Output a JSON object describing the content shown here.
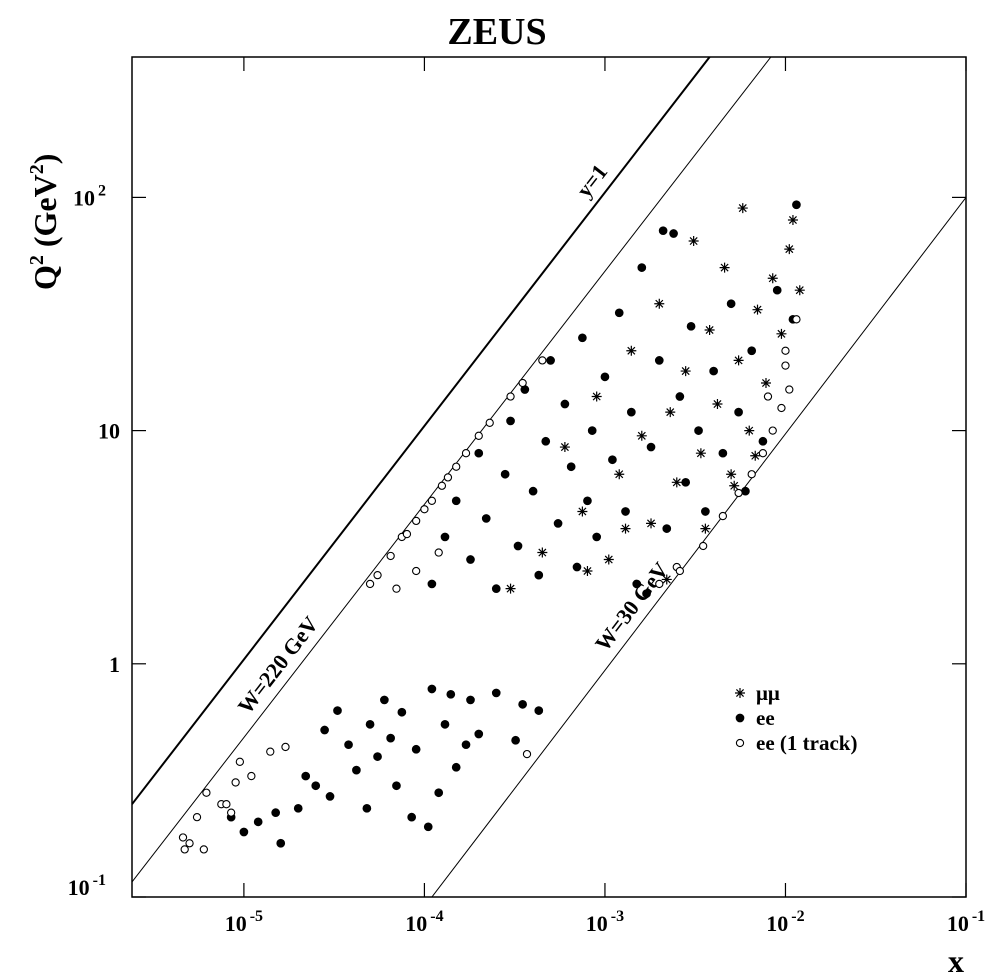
{
  "chart_data": {
    "type": "scatter",
    "title": "ZEUS",
    "xlabel": "x",
    "ylabel": [
      "Q",
      "2",
      " (GeV",
      "2",
      ")"
    ],
    "log_x": true,
    "log_y": true,
    "xlim": [
      2.4e-06,
      0.1
    ],
    "ylim": [
      0.1,
      400
    ],
    "xticks": [
      {
        "value": 1e-05,
        "label": "10",
        "sup": "-5"
      },
      {
        "value": 0.0001,
        "label": "10",
        "sup": "-4"
      },
      {
        "value": 0.001,
        "label": "10",
        "sup": "-3"
      },
      {
        "value": 0.01,
        "label": "10",
        "sup": "-2"
      },
      {
        "value": 0.1,
        "label": "10",
        "sup": "-1"
      }
    ],
    "yticks": [
      {
        "value": 0.1,
        "label": "10",
        "sup": "-1"
      },
      1,
      10,
      {
        "value": 100,
        "label": "10",
        "sup": "2"
      }
    ],
    "legend": "lower right",
    "lines": [
      {
        "label": "y=1",
        "width": 2,
        "x": [
          2.4e-06,
          0.0038
        ],
        "y": [
          0.25,
          400
        ]
      },
      {
        "label": "W=220 GeV",
        "width": 1,
        "x": [
          2.4e-06,
          0.0083
        ],
        "y": [
          0.116,
          400
        ]
      },
      {
        "label": "W=30 GeV",
        "width": 1,
        "x": [
          0.00011,
          0.1
        ],
        "y": [
          0.1,
          100
        ]
      }
    ],
    "series": [
      {
        "name": "μμ",
        "marker": "asterisk",
        "color": "#000000",
        "x": [
          0.0003,
          0.00045,
          0.0006,
          0.00075,
          0.0009,
          0.00105,
          0.0012,
          0.0014,
          0.0016,
          0.0018,
          0.002,
          0.0023,
          0.0025,
          0.0028,
          0.0031,
          0.0034,
          0.0038,
          0.0042,
          0.0046,
          0.005,
          0.0055,
          0.0058,
          0.0063,
          0.007,
          0.0078,
          0.0085,
          0.0095,
          0.0105,
          0.011,
          0.012,
          0.0008,
          0.0013,
          0.0022,
          0.0036,
          0.0052,
          0.0068
        ],
        "y": [
          2.1,
          3.0,
          8.5,
          4.5,
          14,
          2.8,
          6.5,
          22,
          9.5,
          4.0,
          35,
          12,
          6.0,
          18,
          65,
          8.0,
          27,
          13,
          50,
          6.5,
          20,
          90,
          10,
          33,
          16,
          45,
          26,
          60,
          80,
          40,
          2.5,
          3.8,
          2.3,
          3.8,
          5.8,
          7.8
        ]
      },
      {
        "name": "ee",
        "marker": "filled",
        "color": "#000000",
        "x": [
          1e-05,
          1.2e-05,
          1.5e-05,
          1.6e-05,
          2e-05,
          2.5e-05,
          2.8e-05,
          3e-05,
          3.3e-05,
          3.8e-05,
          4.2e-05,
          4.8e-05,
          5.5e-05,
          6e-05,
          6.5e-05,
          7e-05,
          7.5e-05,
          8.5e-05,
          9e-05,
          0.000105,
          0.00011,
          0.00013,
          0.00015,
          0.00018,
          0.0002,
          0.00025,
          0.00032,
          0.00035,
          0.00043,
          8.5e-06,
          2.2e-05,
          5e-05,
          0.00012,
          0.00014,
          0.00017,
          0.00011,
          0.00013,
          0.00015,
          0.00018,
          0.0002,
          0.00022,
          0.00025,
          0.00028,
          0.0003,
          0.00033,
          0.00036,
          0.0004,
          0.00043,
          0.00047,
          0.0005,
          0.00055,
          0.0006,
          0.00065,
          0.0007,
          0.00075,
          0.0008,
          0.00085,
          0.0009,
          0.001,
          0.0011,
          0.0012,
          0.0013,
          0.0014,
          0.0015,
          0.0016,
          0.0018,
          0.002,
          0.0022,
          0.0024,
          0.0026,
          0.0028,
          0.003,
          0.0033,
          0.0036,
          0.004,
          0.0045,
          0.005,
          0.0055,
          0.0065,
          0.0075,
          0.009,
          0.0115,
          0.011,
          0.006,
          0.0021,
          0.0017
        ],
        "y": [
          0.19,
          0.21,
          0.23,
          0.17,
          0.24,
          0.3,
          0.52,
          0.27,
          0.63,
          0.45,
          0.35,
          0.24,
          0.4,
          0.7,
          0.48,
          0.3,
          0.62,
          0.22,
          0.43,
          0.2,
          0.78,
          0.55,
          0.36,
          0.7,
          0.5,
          0.75,
          0.47,
          0.67,
          0.63,
          0.22,
          0.33,
          0.55,
          0.28,
          0.74,
          0.45,
          2.2,
          3.5,
          5.0,
          2.8,
          8.0,
          4.2,
          2.1,
          6.5,
          11,
          3.2,
          15,
          5.5,
          2.4,
          9.0,
          20,
          4.0,
          13,
          7.0,
          2.6,
          25,
          5.0,
          10,
          3.5,
          17,
          7.5,
          32,
          4.5,
          12,
          2.2,
          50,
          8.5,
          20,
          3.8,
          70,
          14,
          6.0,
          28,
          10,
          4.5,
          18,
          8.0,
          35,
          12,
          22,
          9.0,
          40,
          93,
          30,
          5.5,
          72,
          2.0
        ]
      },
      {
        "name": "ee (1 track)",
        "marker": "open",
        "color": "#000000",
        "x": [
          4.6e-06,
          4.7e-06,
          5e-06,
          5.5e-06,
          6e-06,
          6.2e-06,
          7.5e-06,
          8e-06,
          9e-06,
          9.5e-06,
          1.1e-05,
          1.4e-05,
          1.7e-05,
          8.5e-06,
          0.00037,
          5e-05,
          5.5e-05,
          6.5e-05,
          7.5e-05,
          8e-05,
          9e-05,
          0.0001,
          0.00011,
          0.000125,
          0.000135,
          0.00015,
          0.00017,
          0.0002,
          0.00023,
          0.0003,
          0.00035,
          0.00045,
          7e-05,
          9e-05,
          0.00012,
          0.0025,
          0.0035,
          0.0045,
          0.0055,
          0.0065,
          0.0075,
          0.0085,
          0.0095,
          0.0105,
          0.01,
          0.01,
          0.0115,
          0.008,
          0.0026,
          0.002
        ],
        "y": [
          0.18,
          0.16,
          0.17,
          0.22,
          0.16,
          0.28,
          0.25,
          0.25,
          0.31,
          0.38,
          0.33,
          0.42,
          0.44,
          0.23,
          0.41,
          2.2,
          2.4,
          2.9,
          3.5,
          3.6,
          4.1,
          4.6,
          5.0,
          5.8,
          6.3,
          7.0,
          8.0,
          9.5,
          10.8,
          14,
          16,
          20,
          2.1,
          2.5,
          3.0,
          2.6,
          3.2,
          4.3,
          5.4,
          6.5,
          8.0,
          10,
          12.5,
          15,
          19,
          22,
          30,
          14,
          2.5,
          2.2
        ]
      }
    ]
  }
}
